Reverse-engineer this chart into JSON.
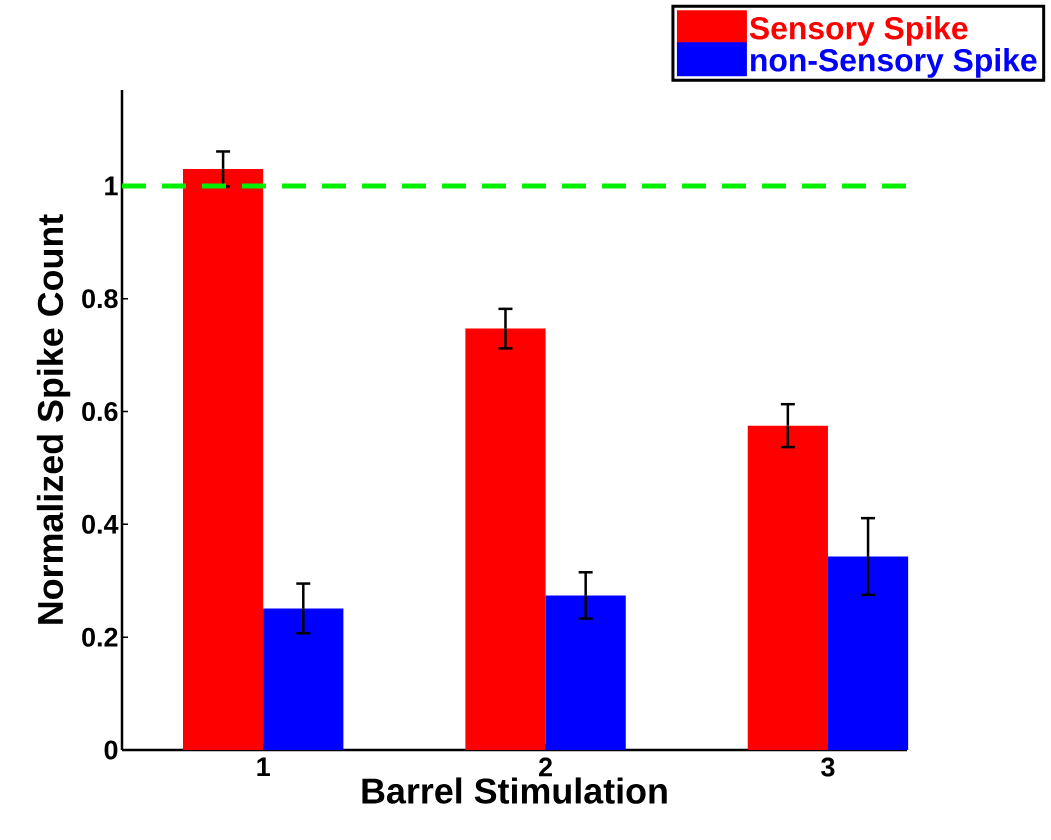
{
  "chart_data": {
    "type": "bar",
    "xlabel": "Barrel Stimulation",
    "ylabel": "Normalized Spike Count",
    "categories": [
      "1",
      "2",
      "3"
    ],
    "series": [
      {
        "name": "Sensory Spike",
        "color": "#ff0000",
        "values": [
          1.03,
          0.747,
          0.575
        ],
        "errors": [
          0.031,
          0.035,
          0.038
        ]
      },
      {
        "name": "non-Sensory Spike",
        "color": "#0000ff",
        "values": [
          0.251,
          0.274,
          0.343
        ],
        "errors": [
          0.044,
          0.041,
          0.068
        ]
      }
    ],
    "ylim": [
      0,
      1.17
    ],
    "yticks": [
      0,
      0.2,
      0.4,
      0.6,
      0.8,
      1
    ],
    "ref_lines": [
      {
        "axis": "y",
        "value": 1,
        "color": "#00ee00",
        "line_style": "dashed"
      }
    ],
    "legend": "top right",
    "grid": false
  }
}
